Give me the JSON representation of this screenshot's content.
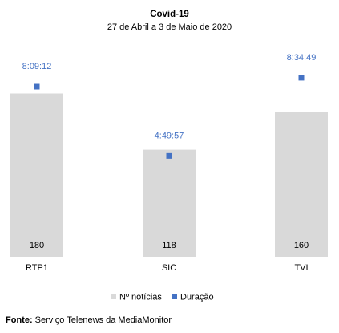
{
  "chart_data": {
    "type": "bar",
    "title": "Covid-19",
    "subtitle": "27 de Abril a 3 de Maio de 2020",
    "categories": [
      "RTP1",
      "SIC",
      "TVI"
    ],
    "series": [
      {
        "name": "Nº notícias",
        "kind": "bar",
        "values": [
          180,
          118,
          160
        ],
        "color": "#d9d9d9"
      },
      {
        "name": "Duração",
        "kind": "marker",
        "values": [
          "8:09:12",
          "4:49:57",
          "8:34:49"
        ],
        "values_seconds": [
          29352,
          17397,
          30889
        ],
        "color": "#4472c4"
      }
    ],
    "ylim_bars": [
      0,
      230
    ],
    "ylim_markers_seconds": [
      0,
      36000
    ],
    "grid": false,
    "legend_position": "bottom"
  },
  "source": {
    "label": "Fonte:",
    "text": " Serviço Telenews da MediaMonitor"
  }
}
